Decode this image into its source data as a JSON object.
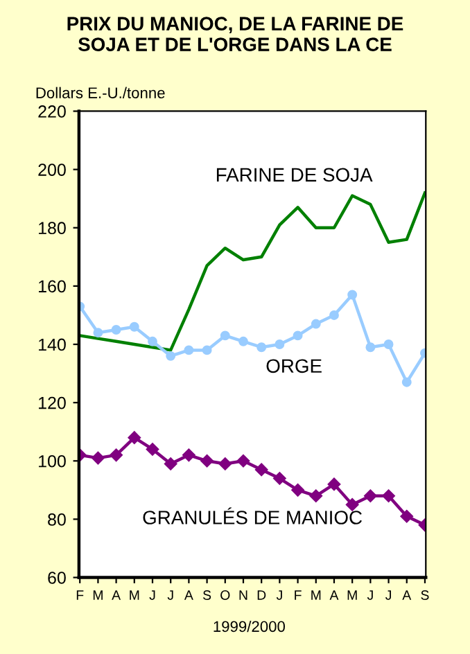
{
  "chart_data": {
    "type": "line",
    "title": "PRIX DU MANIOC, DE LA FARINE DE\nSOJA ET DE L'ORGE DANS LA CE",
    "ylabel": "Dollars E.-U./tonne",
    "xlabel": "1999/2000",
    "categories": [
      "F",
      "M",
      "A",
      "M",
      "J",
      "J",
      "A",
      "S",
      "O",
      "N",
      "D",
      "J",
      "F",
      "M",
      "A",
      "M",
      "J",
      "J",
      "A",
      "S"
    ],
    "series": [
      {
        "name": "FARINE DE SOJA",
        "color": "#008000",
        "marker": "none",
        "values": [
          143,
          142,
          141,
          140,
          139,
          138,
          152,
          167,
          173,
          169,
          170,
          181,
          187,
          180,
          180,
          191,
          188,
          175,
          176,
          192
        ]
      },
      {
        "name": "ORGE",
        "color": "#99ccff",
        "marker": "circle",
        "values": [
          153,
          144,
          145,
          146,
          141,
          136,
          138,
          138,
          143,
          141,
          139,
          140,
          143,
          147,
          150,
          157,
          139,
          140,
          127,
          137
        ]
      },
      {
        "name": "GRANULÉS DE MANIOC",
        "color": "#800080",
        "marker": "diamond",
        "values": [
          102,
          101,
          102,
          108,
          104,
          99,
          102,
          100,
          99,
          100,
          97,
          94,
          90,
          88,
          92,
          85,
          88,
          88,
          81,
          78
        ]
      }
    ],
    "ylim": [
      60,
      220
    ],
    "yticks": [
      60,
      80,
      100,
      120,
      140,
      160,
      180,
      200,
      220
    ],
    "grid": false,
    "legend": false
  }
}
